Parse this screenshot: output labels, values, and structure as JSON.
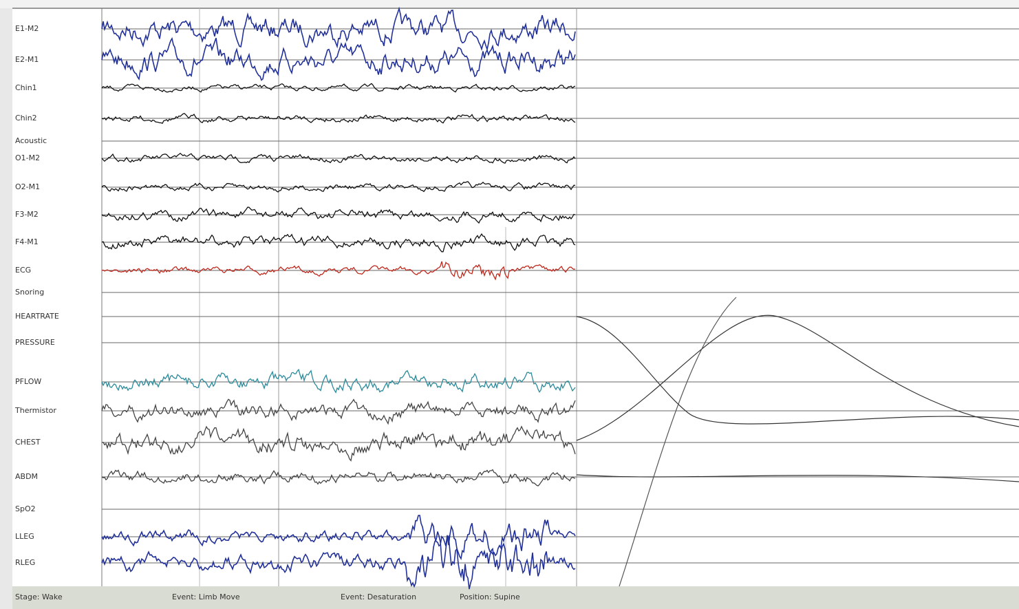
{
  "channels": [
    "E1-M2",
    "E2-M1",
    "Chin1",
    "Chin2",
    "Acoustic",
    "O1-M2",
    "O2-M1",
    "F3-M2",
    "F4-M1",
    "ECG",
    "Snoring",
    "HEARTRATE",
    "PRESSURE",
    "PFLOW",
    "Thermistor",
    "CHEST",
    "ABDM",
    "SpO2",
    "LLEG",
    "RLEG"
  ],
  "status_bar": [
    "Stage: Wake",
    "Event: Limb Move",
    "Event: Desaturation",
    "Position: Supine"
  ]
}
